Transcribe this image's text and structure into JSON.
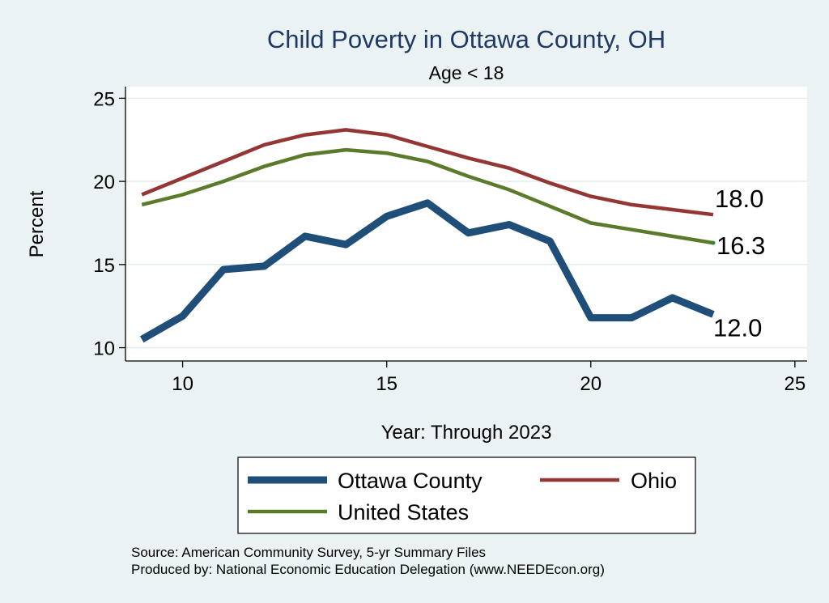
{
  "chart_data": {
    "type": "line",
    "title": "Child Poverty in Ottawa County, OH",
    "subtitle": "Age < 18",
    "xlabel": "Year: Through 2023",
    "ylabel": "Percent",
    "xlim": [
      8.6,
      25.3
    ],
    "ylim": [
      9.2,
      25.7
    ],
    "xticks": [
      10,
      15,
      20,
      25
    ],
    "yticks": [
      10,
      15,
      20,
      25
    ],
    "grid": true,
    "legend_position": "bottom",
    "x": [
      9,
      10,
      11,
      12,
      13,
      14,
      15,
      16,
      17,
      18,
      19,
      20,
      21,
      22,
      23
    ],
    "series": [
      {
        "name": "Ottawa County",
        "color": "#1f4e79",
        "values": [
          10.5,
          11.9,
          14.7,
          14.9,
          16.7,
          16.2,
          17.9,
          18.7,
          16.9,
          17.4,
          16.4,
          11.8,
          11.8,
          13.0,
          12.0
        ],
        "end_label": "12.0"
      },
      {
        "name": "Ohio",
        "color": "#943634",
        "values": [
          19.2,
          20.2,
          21.2,
          22.2,
          22.8,
          23.1,
          22.8,
          22.1,
          21.4,
          20.8,
          19.9,
          19.1,
          18.6,
          18.3,
          18.0
        ],
        "end_label": "18.0"
      },
      {
        "name": "United States",
        "color": "#5b7a2a",
        "values": [
          18.6,
          19.2,
          20.0,
          20.9,
          21.6,
          21.9,
          21.7,
          21.2,
          20.3,
          19.5,
          18.5,
          17.5,
          17.1,
          16.7,
          16.3
        ],
        "end_label": "16.3"
      }
    ],
    "notes": [
      "Source: American Community Survey, 5-yr Summary Files",
      "Produced by: National Economic Education Delegation (www.NEEDEcon.org)"
    ]
  }
}
